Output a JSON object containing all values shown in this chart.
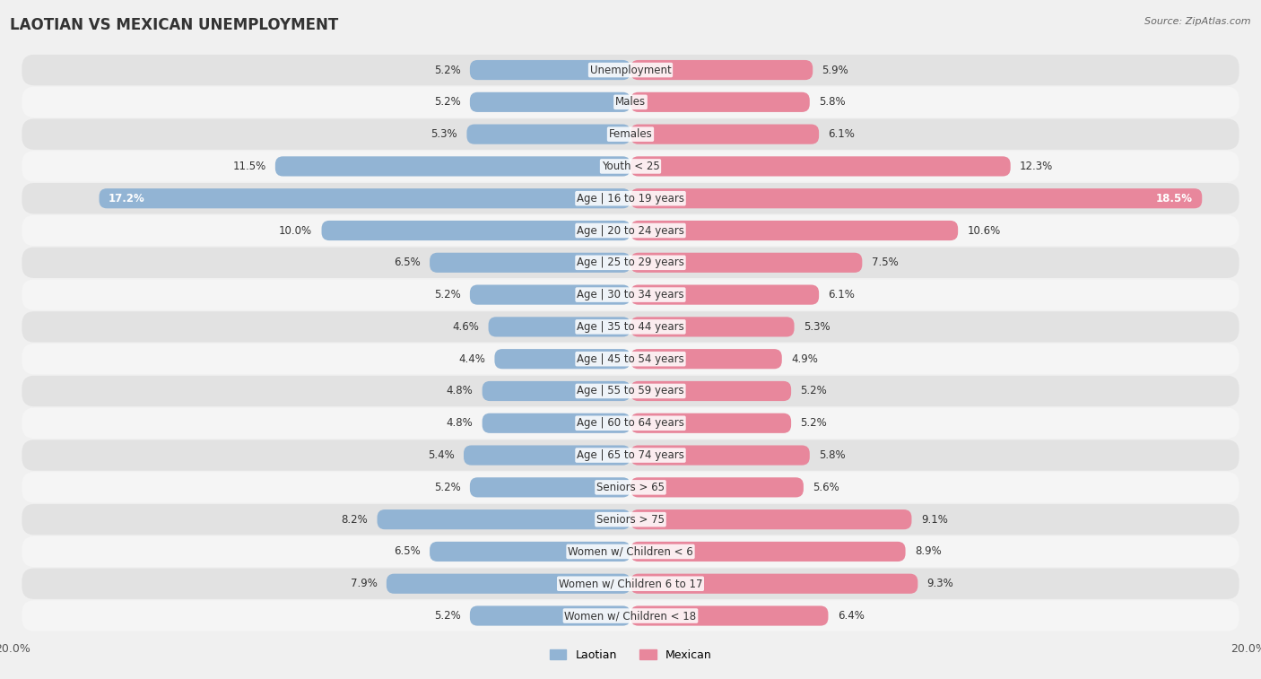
{
  "title": "LAOTIAN VS MEXICAN UNEMPLOYMENT",
  "source": "Source: ZipAtlas.com",
  "categories": [
    "Unemployment",
    "Males",
    "Females",
    "Youth < 25",
    "Age | 16 to 19 years",
    "Age | 20 to 24 years",
    "Age | 25 to 29 years",
    "Age | 30 to 34 years",
    "Age | 35 to 44 years",
    "Age | 45 to 54 years",
    "Age | 55 to 59 years",
    "Age | 60 to 64 years",
    "Age | 65 to 74 years",
    "Seniors > 65",
    "Seniors > 75",
    "Women w/ Children < 6",
    "Women w/ Children 6 to 17",
    "Women w/ Children < 18"
  ],
  "laotian": [
    5.2,
    5.2,
    5.3,
    11.5,
    17.2,
    10.0,
    6.5,
    5.2,
    4.6,
    4.4,
    4.8,
    4.8,
    5.4,
    5.2,
    8.2,
    6.5,
    7.9,
    5.2
  ],
  "mexican": [
    5.9,
    5.8,
    6.1,
    12.3,
    18.5,
    10.6,
    7.5,
    6.1,
    5.3,
    4.9,
    5.2,
    5.2,
    5.8,
    5.6,
    9.1,
    8.9,
    9.3,
    6.4
  ],
  "laotian_color": "#92b4d4",
  "mexican_color": "#e8879c",
  "laotian_label_color": "#333333",
  "mexican_label_color": "#333333",
  "laotian_highlight_color": "#4a90c4",
  "mexican_highlight_color": "#e0435f",
  "bar_height": 0.62,
  "max_val": 20.0,
  "background_color": "#f0f0f0",
  "row_dark_color": "#e2e2e2",
  "row_light_color": "#f5f5f5",
  "title_fontsize": 12,
  "label_fontsize": 8.5,
  "tick_fontsize": 9,
  "cat_fontsize": 8.5
}
